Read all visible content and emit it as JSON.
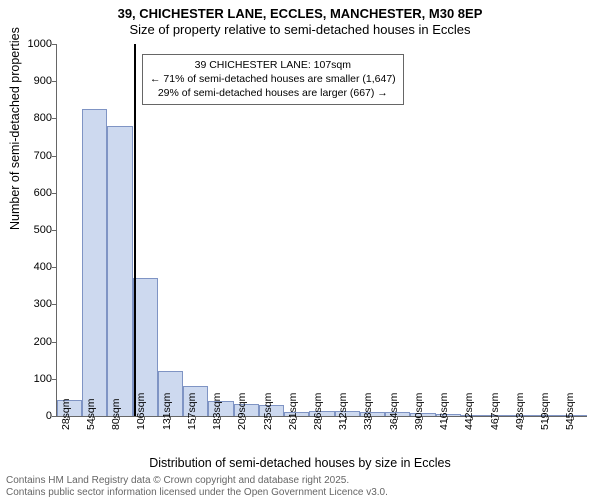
{
  "title_main": "39, CHICHESTER LANE, ECCLES, MANCHESTER, M30 8EP",
  "title_sub": "Size of property relative to semi-detached houses in Eccles",
  "y_axis_label": "Number of semi-detached properties",
  "x_axis_label": "Distribution of semi-detached houses by size in Eccles",
  "footer1": "Contains HM Land Registry data © Crown copyright and database right 2025.",
  "footer2": "Contains public sector information licensed under the Open Government Licence v3.0.",
  "chart": {
    "type": "histogram",
    "bar_fill": "#cdd9ef",
    "bar_stroke": "#7f94c4",
    "reference_line_color": "#000000",
    "grid_color": "#666666",
    "background_color": "#ffffff",
    "y_min": 0,
    "y_max": 1000,
    "y_ticks": [
      0,
      100,
      200,
      300,
      400,
      500,
      600,
      700,
      800,
      900,
      1000
    ],
    "x_tick_labels": [
      "28sqm",
      "54sqm",
      "80sqm",
      "106sqm",
      "131sqm",
      "157sqm",
      "183sqm",
      "209sqm",
      "235sqm",
      "261sqm",
      "286sqm",
      "312sqm",
      "338sqm",
      "364sqm",
      "390sqm",
      "416sqm",
      "442sqm",
      "467sqm",
      "493sqm",
      "519sqm",
      "545sqm"
    ],
    "bar_values": [
      42,
      825,
      780,
      370,
      120,
      80,
      40,
      33,
      30,
      12,
      14,
      14,
      12,
      10,
      8,
      6,
      4,
      3,
      2,
      2,
      1
    ],
    "reference_x_index": 3.05,
    "annotation": {
      "line1": "39 CHICHESTER LANE: 107sqm",
      "line2": "← 71% of semi-detached houses are smaller (1,647)",
      "line3": "29% of semi-detached houses are larger (667) →"
    }
  }
}
